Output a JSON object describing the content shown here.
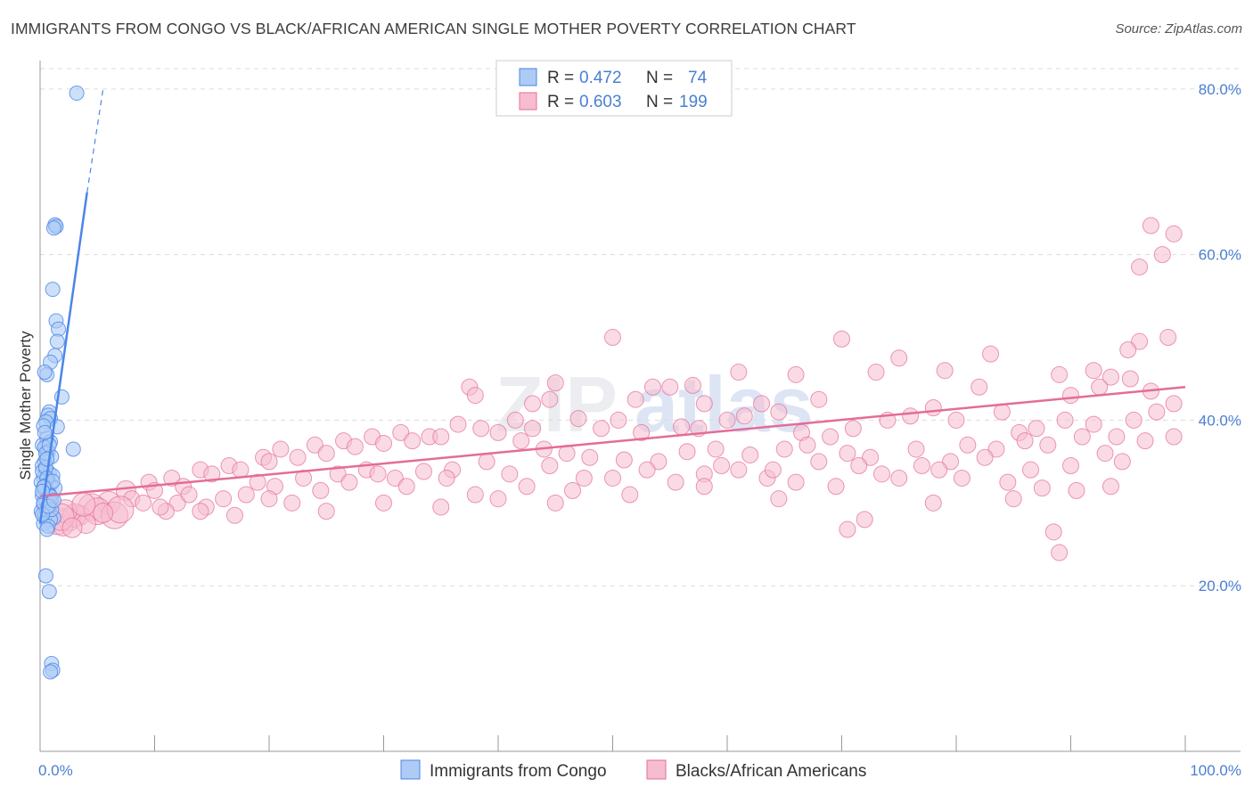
{
  "title": "IMMIGRANTS FROM CONGO VS BLACK/AFRICAN AMERICAN SINGLE MOTHER POVERTY CORRELATION CHART",
  "source": "Source: ZipAtlas.com",
  "watermark": {
    "part1": "ZIP",
    "part2": "atlas"
  },
  "colors": {
    "blue": "#4a86e8",
    "blue_fill": "#aecbf5",
    "pink": "#e46c98",
    "pink_fill": "#f6bdd0",
    "axis_text": "#4a7fd1"
  },
  "legend": {
    "rows": [
      {
        "r_label": "R =",
        "r_value": "0.472",
        "n_label": "N =",
        "n_value": "74"
      },
      {
        "r_label": "R =",
        "r_value": "0.603",
        "n_label": "N =",
        "n_value": "199"
      }
    ]
  },
  "chart_data": {
    "type": "scatter",
    "ylabel": "Single Mother Poverty",
    "xlim": [
      0,
      100
    ],
    "ylim": [
      0,
      83
    ],
    "x_tick_labels": [
      "0.0%",
      "100.0%"
    ],
    "y_ticks": [
      20,
      40,
      60,
      80
    ],
    "y_tick_labels": [
      "20.0%",
      "40.0%",
      "60.0%",
      "80.0%"
    ],
    "grid": true,
    "series": [
      {
        "name": "Immigrants from Congo",
        "color": "#4a86e8",
        "trend": {
          "x0": 0,
          "y0": 27.5,
          "x1": 4.1,
          "y1": 67.5,
          "dash_to_x": 5.5,
          "dash_to_y": 80
        },
        "points": [
          [
            3.2,
            79.5
          ],
          [
            1.3,
            63.6
          ],
          [
            1.4,
            63.4
          ],
          [
            1.2,
            63.2
          ],
          [
            1.1,
            55.8
          ],
          [
            1.4,
            52.0
          ],
          [
            1.6,
            51.0
          ],
          [
            1.5,
            49.5
          ],
          [
            1.3,
            47.8
          ],
          [
            0.9,
            47.0
          ],
          [
            0.6,
            45.5
          ],
          [
            0.4,
            45.8
          ],
          [
            1.9,
            42.8
          ],
          [
            0.8,
            41.0
          ],
          [
            0.7,
            40.6
          ],
          [
            0.9,
            40.2
          ],
          [
            0.5,
            39.8
          ],
          [
            0.3,
            39.3
          ],
          [
            1.5,
            39.2
          ],
          [
            0.6,
            37.8
          ],
          [
            0.9,
            37.4
          ],
          [
            0.2,
            37.0
          ],
          [
            0.4,
            36.7
          ],
          [
            0.7,
            36.2
          ],
          [
            2.9,
            36.5
          ],
          [
            1.0,
            35.6
          ],
          [
            0.4,
            35.0
          ],
          [
            0.2,
            34.5
          ],
          [
            0.5,
            34.0
          ],
          [
            0.8,
            33.6
          ],
          [
            1.1,
            33.3
          ],
          [
            0.3,
            33.1
          ],
          [
            0.6,
            32.8
          ],
          [
            0.1,
            32.5
          ],
          [
            0.9,
            32.2
          ],
          [
            1.3,
            31.8
          ],
          [
            0.4,
            31.5
          ],
          [
            0.7,
            31.2
          ],
          [
            0.2,
            30.9
          ],
          [
            1.0,
            30.6
          ],
          [
            0.5,
            30.2
          ],
          [
            0.3,
            29.8
          ],
          [
            0.8,
            29.4
          ],
          [
            0.1,
            29.0
          ],
          [
            0.6,
            28.8
          ],
          [
            0.4,
            28.5
          ],
          [
            1.2,
            28.2
          ],
          [
            0.9,
            28.0
          ],
          [
            0.3,
            27.5
          ],
          [
            0.7,
            27.2
          ],
          [
            0.6,
            26.8
          ],
          [
            0.5,
            21.2
          ],
          [
            0.8,
            19.3
          ],
          [
            1.0,
            10.6
          ],
          [
            1.1,
            9.8
          ],
          [
            0.9,
            9.6
          ],
          [
            0.2,
            33.8
          ],
          [
            0.5,
            34.3
          ],
          [
            0.8,
            31.0
          ],
          [
            0.3,
            30.0
          ],
          [
            1.0,
            29.2
          ],
          [
            0.6,
            33.0
          ],
          [
            0.4,
            32.0
          ],
          [
            0.9,
            30.8
          ],
          [
            0.2,
            28.6
          ],
          [
            0.7,
            29.6
          ],
          [
            1.1,
            32.6
          ],
          [
            0.3,
            31.9
          ],
          [
            0.5,
            36.0
          ],
          [
            0.8,
            37.0
          ],
          [
            0.4,
            38.5
          ],
          [
            0.6,
            35.3
          ],
          [
            1.2,
            30.3
          ],
          [
            0.2,
            31.4
          ]
        ]
      },
      {
        "name": "Blacks/African Americans",
        "color": "#e46c98",
        "trend": {
          "x0": 0,
          "y0": 30.8,
          "x1": 100,
          "y1": 44.0
        },
        "points": [
          [
            97.0,
            63.5
          ],
          [
            99.0,
            62.5
          ],
          [
            98.0,
            60.0
          ],
          [
            96.0,
            58.5
          ],
          [
            50.0,
            50.0
          ],
          [
            70.0,
            49.8
          ],
          [
            96.0,
            49.5
          ],
          [
            98.5,
            50.0
          ],
          [
            95.0,
            48.5
          ],
          [
            75.0,
            47.5
          ],
          [
            83.0,
            48.0
          ],
          [
            92.0,
            46.0
          ],
          [
            89.0,
            45.5
          ],
          [
            93.5,
            45.2
          ],
          [
            95.2,
            45.0
          ],
          [
            61.0,
            45.8
          ],
          [
            66.0,
            45.5
          ],
          [
            73.0,
            45.8
          ],
          [
            79.0,
            46.0
          ],
          [
            82.0,
            44.0
          ],
          [
            90.0,
            43.0
          ],
          [
            92.5,
            44.0
          ],
          [
            97.0,
            43.5
          ],
          [
            55.0,
            44.0
          ],
          [
            57.0,
            44.2
          ],
          [
            53.5,
            44.0
          ],
          [
            37.5,
            44.0
          ],
          [
            38.0,
            43.0
          ],
          [
            45.0,
            44.5
          ],
          [
            52.0,
            42.5
          ],
          [
            43.0,
            42.0
          ],
          [
            44.5,
            42.5
          ],
          [
            68.0,
            42.5
          ],
          [
            63.0,
            42.0
          ],
          [
            64.5,
            41.0
          ],
          [
            58.0,
            42.0
          ],
          [
            61.5,
            40.5
          ],
          [
            50.5,
            40.0
          ],
          [
            47.0,
            40.2
          ],
          [
            49.0,
            39.0
          ],
          [
            52.5,
            38.5
          ],
          [
            56.0,
            39.2
          ],
          [
            57.5,
            39.0
          ],
          [
            60.0,
            40.0
          ],
          [
            66.5,
            38.5
          ],
          [
            69.0,
            38.0
          ],
          [
            71.0,
            39.0
          ],
          [
            74.0,
            40.0
          ],
          [
            76.0,
            40.5
          ],
          [
            78.0,
            41.5
          ],
          [
            80.0,
            40.0
          ],
          [
            84.0,
            41.0
          ],
          [
            85.5,
            38.5
          ],
          [
            87.0,
            39.0
          ],
          [
            89.5,
            40.0
          ],
          [
            92.0,
            39.5
          ],
          [
            94.0,
            38.0
          ],
          [
            95.5,
            40.0
          ],
          [
            97.5,
            41.0
          ],
          [
            99.0,
            42.0
          ],
          [
            43.0,
            39.0
          ],
          [
            41.5,
            40.0
          ],
          [
            38.5,
            39.0
          ],
          [
            36.5,
            39.5
          ],
          [
            34.0,
            38.0
          ],
          [
            31.5,
            38.5
          ],
          [
            29.0,
            38.0
          ],
          [
            26.5,
            37.5
          ],
          [
            24.0,
            37.0
          ],
          [
            21.0,
            36.5
          ],
          [
            19.5,
            35.5
          ],
          [
            16.5,
            34.5
          ],
          [
            14.0,
            34.0
          ],
          [
            11.5,
            33.0
          ],
          [
            9.5,
            32.5
          ],
          [
            7.5,
            31.5
          ],
          [
            6.0,
            30.0
          ],
          [
            4.5,
            29.5
          ],
          [
            3.5,
            28.5
          ],
          [
            2.5,
            28.0
          ],
          [
            1.5,
            27.8
          ],
          [
            2.0,
            27.2
          ],
          [
            3.0,
            28.5
          ],
          [
            5.0,
            29.0
          ],
          [
            8.0,
            30.5
          ],
          [
            10.0,
            31.5
          ],
          [
            12.5,
            32.0
          ],
          [
            15.0,
            33.5
          ],
          [
            17.5,
            34.0
          ],
          [
            20.0,
            35.0
          ],
          [
            22.5,
            35.5
          ],
          [
            25.0,
            36.0
          ],
          [
            27.5,
            36.8
          ],
          [
            30.0,
            37.2
          ],
          [
            32.5,
            37.5
          ],
          [
            35.0,
            38.0
          ],
          [
            40.0,
            38.5
          ],
          [
            42.0,
            37.5
          ],
          [
            44.0,
            36.5
          ],
          [
            46.0,
            36.0
          ],
          [
            48.0,
            35.5
          ],
          [
            51.0,
            35.2
          ],
          [
            54.0,
            35.0
          ],
          [
            56.5,
            36.2
          ],
          [
            59.0,
            36.5
          ],
          [
            62.0,
            35.8
          ],
          [
            65.0,
            36.5
          ],
          [
            67.0,
            37.0
          ],
          [
            70.5,
            36.0
          ],
          [
            72.5,
            35.5
          ],
          [
            76.5,
            36.5
          ],
          [
            79.5,
            35.0
          ],
          [
            81.0,
            37.0
          ],
          [
            83.5,
            36.5
          ],
          [
            86.0,
            37.5
          ],
          [
            88.0,
            37.0
          ],
          [
            91.0,
            38.0
          ],
          [
            93.0,
            36.0
          ],
          [
            96.5,
            37.5
          ],
          [
            99.0,
            38.0
          ],
          [
            12.0,
            30.0
          ],
          [
            14.5,
            29.5
          ],
          [
            18.0,
            31.0
          ],
          [
            20.5,
            32.0
          ],
          [
            23.0,
            33.0
          ],
          [
            26.0,
            33.5
          ],
          [
            28.5,
            34.0
          ],
          [
            31.0,
            33.0
          ],
          [
            33.5,
            33.8
          ],
          [
            36.0,
            34.0
          ],
          [
            39.0,
            35.0
          ],
          [
            41.0,
            33.5
          ],
          [
            44.5,
            34.5
          ],
          [
            47.5,
            33.0
          ],
          [
            53.0,
            34.0
          ],
          [
            58.0,
            33.5
          ],
          [
            61.0,
            34.0
          ],
          [
            63.5,
            33.0
          ],
          [
            66.0,
            32.5
          ],
          [
            69.5,
            32.0
          ],
          [
            73.5,
            33.5
          ],
          [
            77.0,
            34.5
          ],
          [
            80.5,
            33.0
          ],
          [
            84.5,
            32.5
          ],
          [
            87.5,
            31.8
          ],
          [
            90.5,
            31.5
          ],
          [
            93.5,
            32.0
          ],
          [
            11.0,
            29.0
          ],
          [
            9.0,
            30.0
          ],
          [
            6.5,
            28.5
          ],
          [
            4.0,
            27.5
          ],
          [
            2.2,
            29.0
          ],
          [
            13.0,
            31.0
          ],
          [
            16.0,
            30.5
          ],
          [
            19.0,
            32.5
          ],
          [
            22.0,
            30.0
          ],
          [
            24.5,
            31.5
          ],
          [
            27.0,
            32.5
          ],
          [
            29.5,
            33.5
          ],
          [
            32.0,
            32.0
          ],
          [
            35.5,
            33.0
          ],
          [
            38.0,
            31.0
          ],
          [
            42.5,
            32.0
          ],
          [
            46.5,
            31.5
          ],
          [
            50.0,
            33.0
          ],
          [
            55.5,
            32.5
          ],
          [
            59.5,
            34.5
          ],
          [
            64.0,
            34.0
          ],
          [
            68.0,
            35.0
          ],
          [
            71.5,
            34.5
          ],
          [
            75.0,
            33.0
          ],
          [
            78.5,
            34.0
          ],
          [
            82.5,
            35.5
          ],
          [
            86.5,
            34.0
          ],
          [
            90.0,
            34.5
          ],
          [
            94.5,
            35.0
          ],
          [
            70.5,
            26.8
          ],
          [
            85.0,
            30.5
          ],
          [
            88.5,
            26.5
          ],
          [
            89.0,
            24.0
          ],
          [
            78.0,
            30.0
          ],
          [
            72.0,
            28.0
          ],
          [
            64.5,
            30.5
          ],
          [
            58.0,
            32.0
          ],
          [
            51.5,
            31.0
          ],
          [
            45.0,
            30.0
          ],
          [
            40.0,
            30.5
          ],
          [
            35.0,
            29.5
          ],
          [
            30.0,
            30.0
          ],
          [
            25.0,
            29.0
          ],
          [
            20.0,
            30.5
          ],
          [
            17.0,
            28.5
          ],
          [
            14.0,
            29.0
          ],
          [
            10.5,
            29.5
          ],
          [
            7.0,
            29.2
          ],
          [
            5.5,
            28.8
          ],
          [
            3.8,
            29.8
          ],
          [
            1.8,
            28.3
          ],
          [
            2.8,
            27.0
          ]
        ]
      }
    ]
  },
  "bottom_legend": [
    "Immigrants from Congo",
    "Blacks/African Americans"
  ]
}
